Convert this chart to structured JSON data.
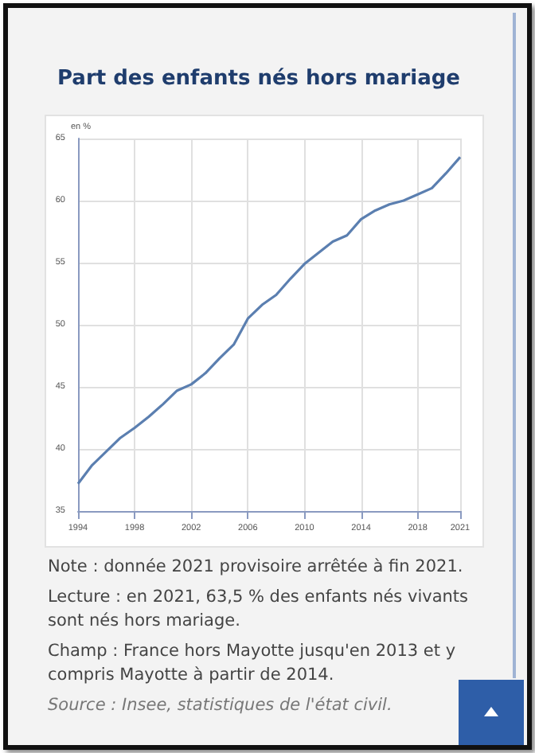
{
  "chart_data": {
    "type": "line",
    "title": "Part des enfants nés hors mariage",
    "ylabel": "en %",
    "x": [
      1994,
      1995,
      1996,
      1997,
      1998,
      1999,
      2000,
      2001,
      2002,
      2003,
      2004,
      2005,
      2006,
      2007,
      2008,
      2009,
      2010,
      2011,
      2012,
      2013,
      2014,
      2015,
      2016,
      2017,
      2018,
      2019,
      2020,
      2021
    ],
    "series": [
      {
        "color": "#5b7fb0",
        "values": [
          37.2,
          38.7,
          39.8,
          40.9,
          41.7,
          42.6,
          43.6,
          44.7,
          45.2,
          46.1,
          47.3,
          48.4,
          50.5,
          51.6,
          52.4,
          53.7,
          54.9,
          55.8,
          56.7,
          57.2,
          58.5,
          59.2,
          59.7,
          60.0,
          60.5,
          61.0,
          62.2,
          63.5
        ]
      }
    ],
    "xlim": [
      1994,
      2021
    ],
    "xticks": [
      1994,
      1998,
      2002,
      2006,
      2010,
      2014,
      2018,
      2021
    ],
    "ylim": [
      35,
      65
    ],
    "yticks": [
      35,
      40,
      45,
      50,
      55,
      60,
      65
    ],
    "grid": true,
    "marker": "none",
    "line_style": "solid",
    "annotations": [
      "Note : donnée 2021 provisoire arrêtée à fin 2021.",
      "Lecture : en 2021, 63,5 % des enfants nés vivants sont nés hors mariage.",
      "Champ : France hors Mayotte jusqu'en 2013 et y compris Mayotte à partir de 2014.",
      "Source : Insee, statistiques de l'état civil."
    ]
  }
}
